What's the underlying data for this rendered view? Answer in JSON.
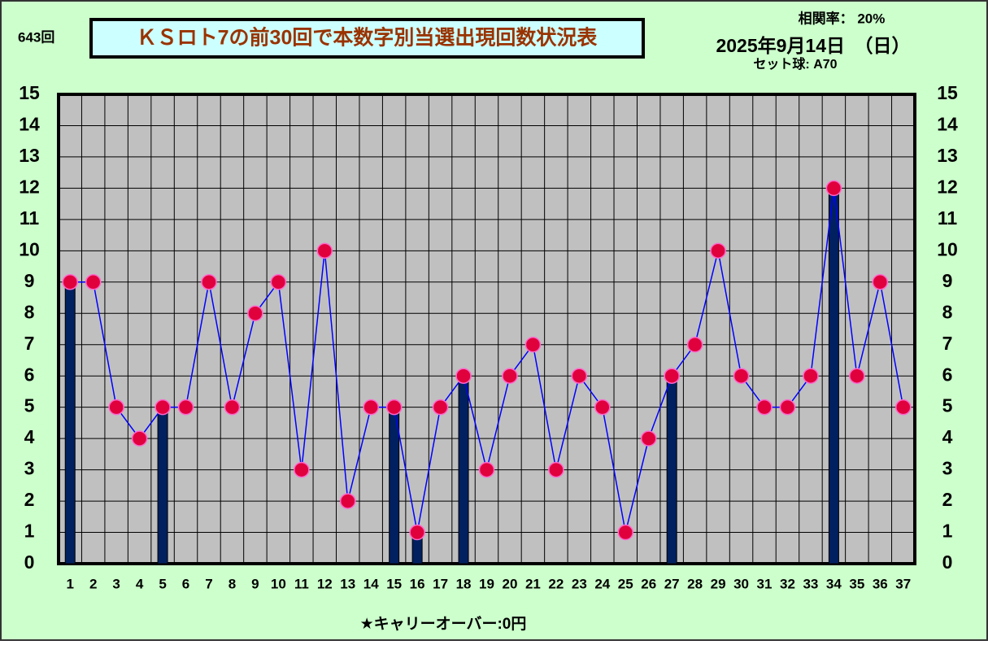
{
  "chart_data": {
    "type": "bar-line",
    "round_label": "643回",
    "title": "ＫＳロト7の前30回で本数字別当選出現回数状況表",
    "correlation": "相関率：  20%",
    "date": "2025年9月14日　（日）",
    "set_ball": "セット球: A70",
    "carryover": "★キャリーオーバー:0円",
    "categories": [
      "1",
      "2",
      "3",
      "4",
      "5",
      "6",
      "7",
      "8",
      "9",
      "10",
      "11",
      "12",
      "13",
      "14",
      "15",
      "16",
      "17",
      "18",
      "19",
      "20",
      "21",
      "22",
      "23",
      "24",
      "25",
      "26",
      "27",
      "28",
      "29",
      "30",
      "31",
      "32",
      "33",
      "34",
      "35",
      "36",
      "37"
    ],
    "series": [
      {
        "kind": "bar",
        "color": "#002060",
        "values": [
          9,
          null,
          null,
          null,
          5,
          null,
          null,
          null,
          null,
          null,
          null,
          null,
          null,
          null,
          5,
          1,
          null,
          6,
          null,
          null,
          null,
          null,
          null,
          null,
          null,
          null,
          6,
          null,
          null,
          null,
          null,
          null,
          null,
          12,
          null,
          null,
          null
        ]
      },
      {
        "kind": "line",
        "color": "#0000ff",
        "marker_color": "#e0003c",
        "values": [
          9,
          9,
          5,
          4,
          5,
          5,
          9,
          5,
          8,
          9,
          3,
          10,
          2,
          5,
          5,
          1,
          5,
          6,
          3,
          6,
          7,
          3,
          6,
          5,
          1,
          4,
          6,
          7,
          10,
          6,
          5,
          5,
          6,
          12,
          6,
          9,
          5
        ]
      }
    ],
    "ylim": [
      0,
      15
    ],
    "yticks": [
      0,
      1,
      2,
      3,
      4,
      5,
      6,
      7,
      8,
      9,
      10,
      11,
      12,
      13,
      14,
      15
    ],
    "grid": true
  }
}
